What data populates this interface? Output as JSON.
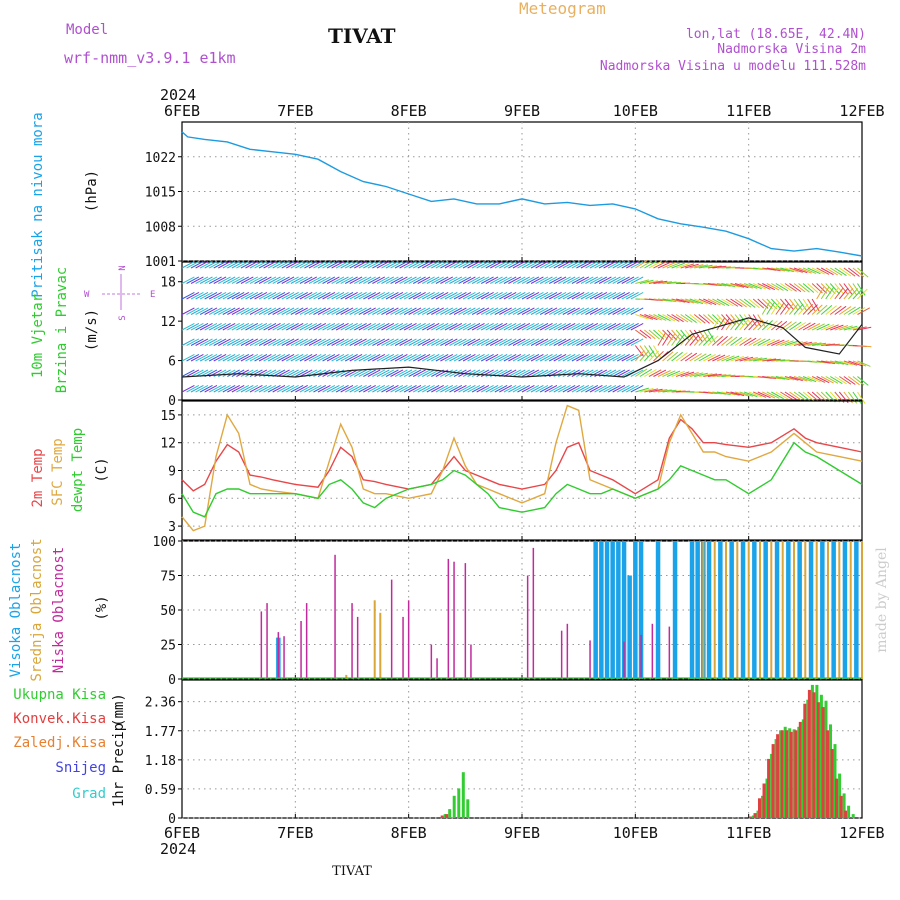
{
  "header": {
    "model_label": "Model",
    "model_name": "wrf-nmm_v3.9.1 e1km",
    "station": "TIVAT",
    "chart_kind": "Meteogram",
    "lonlat": "lon,lat (18.65E, 42.4N)",
    "elevation": "Nadmorska Visina 2m",
    "model_elevation": "Nadmorska Visina u modelu 111.528m",
    "footer_station": "TIVAT",
    "credit": "made by Angel"
  },
  "axis": {
    "year_label": "2024",
    "day_labels": [
      "6FEB",
      "7FEB",
      "8FEB",
      "9FEB",
      "10FEB",
      "11FEB",
      "12FEB"
    ]
  },
  "panels": {
    "pressure": {
      "ylabel": "Pritisak na nivou mora",
      "unit": "(hPa)"
    },
    "wind": {
      "ylabel1": "10m Vjetar",
      "ylabel2": "Brzina i Pravac",
      "unit": "(m/s)",
      "compass": "N",
      "compass_w": "W",
      "compass_e": "E",
      "compass_s": "S"
    },
    "temp": {
      "ylabel1": "2m Temp",
      "ylabel2": "SFC Temp",
      "ylabel3": "dewpt Temp",
      "unit": "(C)"
    },
    "cloud": {
      "ylabel1": "Visoka Oblacnost",
      "ylabel2": "Srednja Oblacnost",
      "ylabel3": "Niska Oblacnost",
      "unit": "(%)"
    },
    "precip": {
      "legend": [
        "Ukupna Kisa",
        "Konvek.Kisa",
        "Zaledj.Kisa",
        "Snijeg",
        "Grad"
      ],
      "ylabel": "1hr Precip",
      "unit": "(mm)"
    }
  },
  "colors": {
    "pressure": "#1e9be0",
    "t2m": "#e8474a",
    "sfc": "#e0a840",
    "dewpt": "#2fcc2f",
    "high_cloud": "#1aa3e8",
    "mid_cloud": "#d9a63a",
    "low_cloud": "#c02a9c",
    "total_rain": "#33cc33",
    "conv_rain": "#e04040",
    "frz_rain": "#e88030",
    "snow": "#4444dd",
    "hail": "#33cccc",
    "title_purple": "#b050d0",
    "meteogram_orange": "#e8b060"
  },
  "chart_data": [
    {
      "type": "line",
      "name": "pressure",
      "ylim": [
        1001,
        1029
      ],
      "yticks": [
        "1001",
        "1008",
        "1015",
        "1022"
      ],
      "x_days": [
        0,
        0.05,
        0.2,
        0.4,
        0.6,
        0.8,
        1.0,
        1.2,
        1.4,
        1.6,
        1.8,
        2.0,
        2.2,
        2.4,
        2.6,
        2.8,
        3.0,
        3.2,
        3.4,
        3.6,
        3.8,
        4.0,
        4.2,
        4.4,
        4.6,
        4.8,
        5.0,
        5.2,
        5.4,
        5.6,
        5.8,
        6.0
      ],
      "values": [
        1027.0,
        1026.0,
        1025.5,
        1025.0,
        1023.5,
        1023.0,
        1022.5,
        1021.5,
        1019.0,
        1017.0,
        1016.0,
        1014.5,
        1013.0,
        1013.5,
        1012.5,
        1012.5,
        1013.5,
        1012.5,
        1012.8,
        1012.2,
        1012.5,
        1011.5,
        1009.5,
        1008.5,
        1007.8,
        1007.0,
        1005.5,
        1003.5,
        1003.0,
        1003.5,
        1002.8,
        1002.0
      ]
    },
    {
      "type": "line",
      "name": "wind",
      "ylim": [
        0,
        21
      ],
      "yticks": [
        "0",
        "6",
        "12",
        "18"
      ],
      "x_days": [
        0,
        0.5,
        1.0,
        1.5,
        2.0,
        2.5,
        3.0,
        3.5,
        3.9,
        4.2,
        4.5,
        4.8,
        5.0,
        5.3,
        5.5,
        5.8,
        6.0
      ],
      "values": [
        3.5,
        4.0,
        3.5,
        4.5,
        5.0,
        4.0,
        3.5,
        4.0,
        3.5,
        6.0,
        10.0,
        11.5,
        12.5,
        11.0,
        8.0,
        7.0,
        11.5
      ]
    },
    {
      "type": "line",
      "name": "temperature",
      "ylim": [
        1.5,
        16.5
      ],
      "yticks": [
        "3",
        "6",
        "9",
        "12",
        "15"
      ],
      "x_days": [
        0,
        0.1,
        0.2,
        0.3,
        0.4,
        0.5,
        0.6,
        0.7,
        0.8,
        1.0,
        1.2,
        1.3,
        1.4,
        1.5,
        1.6,
        1.7,
        1.8,
        2.0,
        2.2,
        2.3,
        2.4,
        2.5,
        2.6,
        2.7,
        2.8,
        3.0,
        3.2,
        3.3,
        3.4,
        3.5,
        3.6,
        3.7,
        3.8,
        4.0,
        4.2,
        4.3,
        4.4,
        4.5,
        4.6,
        4.7,
        4.8,
        5.0,
        5.2,
        5.4,
        5.5,
        5.6,
        5.8,
        6.0
      ],
      "series": [
        {
          "name": "2m Temp",
          "values": [
            8.0,
            6.8,
            7.5,
            10.0,
            11.8,
            11.0,
            8.5,
            8.3,
            8.0,
            7.5,
            7.2,
            9.0,
            11.5,
            10.5,
            8.0,
            7.8,
            7.5,
            7.0,
            7.5,
            9.0,
            10.5,
            9.0,
            8.5,
            8.0,
            7.5,
            7.0,
            7.5,
            9.0,
            11.5,
            12.0,
            9.0,
            8.5,
            8.0,
            6.5,
            8.0,
            12.5,
            14.5,
            13.5,
            12.0,
            12.0,
            11.8,
            11.5,
            12.0,
            13.5,
            12.5,
            12.0,
            11.5,
            11.0
          ]
        },
        {
          "name": "SFC Temp",
          "values": [
            4.0,
            2.5,
            3.0,
            10.5,
            15.0,
            13.0,
            7.5,
            7.0,
            6.8,
            6.5,
            6.0,
            10.0,
            14.0,
            11.5,
            7.0,
            6.5,
            6.5,
            6.0,
            6.5,
            9.0,
            12.5,
            9.5,
            7.5,
            7.0,
            6.5,
            5.5,
            6.5,
            12.0,
            16.0,
            15.5,
            8.0,
            7.5,
            7.0,
            6.0,
            7.0,
            12.0,
            15.0,
            13.0,
            11.0,
            11.0,
            10.5,
            10.0,
            11.0,
            13.0,
            12.0,
            11.0,
            10.5,
            10.0
          ]
        },
        {
          "name": "dewpt Temp",
          "values": [
            6.5,
            4.5,
            4.0,
            6.5,
            7.0,
            7.0,
            6.5,
            6.5,
            6.5,
            6.5,
            6.0,
            7.5,
            8.0,
            7.0,
            5.5,
            5.0,
            6.0,
            7.0,
            7.5,
            8.0,
            9.0,
            8.5,
            7.5,
            6.5,
            5.0,
            4.5,
            5.0,
            6.5,
            7.5,
            7.0,
            6.5,
            6.5,
            7.0,
            6.0,
            7.0,
            8.0,
            9.5,
            9.0,
            8.5,
            8.0,
            8.0,
            6.5,
            8.0,
            12.0,
            11.0,
            10.5,
            9.0,
            7.5
          ]
        }
      ]
    },
    {
      "type": "bar",
      "name": "cloud",
      "ylim": [
        0,
        100
      ],
      "yticks": [
        "0",
        "25",
        "50",
        "75",
        "100"
      ],
      "series": [
        {
          "name": "Visoka Oblacnost",
          "x_days": [
            0.85,
            3.65,
            3.7,
            3.75,
            3.8,
            3.85,
            3.9,
            3.95,
            4.0,
            4.05,
            4.2,
            4.35,
            4.5,
            4.55,
            4.6,
            4.65,
            4.75,
            4.85,
            4.95,
            5.05,
            5.15,
            5.25,
            5.35,
            5.45,
            5.55,
            5.65,
            5.75,
            5.85,
            5.95
          ],
          "values": [
            30,
            100,
            100,
            100,
            100,
            100,
            100,
            75,
            100,
            100,
            100,
            100,
            100,
            100,
            100,
            100,
            100,
            100,
            100,
            100,
            100,
            100,
            100,
            100,
            100,
            100,
            100,
            100,
            100
          ]
        },
        {
          "name": "Srednja Oblacnost",
          "x_days": [
            1.45,
            1.7,
            1.75,
            4.6,
            4.7,
            4.8,
            4.9,
            5.0,
            5.1,
            5.2,
            5.3,
            5.4,
            5.5,
            5.6,
            5.7,
            5.8,
            5.9,
            6.0
          ],
          "values": [
            3,
            57,
            48,
            100,
            100,
            100,
            100,
            100,
            100,
            100,
            100,
            100,
            100,
            100,
            100,
            100,
            100,
            100
          ]
        },
        {
          "name": "Niska Oblacnost",
          "x_days": [
            0.7,
            0.75,
            0.85,
            0.9,
            1.05,
            1.1,
            1.35,
            1.5,
            1.55,
            1.85,
            1.95,
            2.0,
            2.2,
            2.25,
            2.35,
            2.4,
            2.5,
            2.55,
            3.05,
            3.1,
            3.35,
            3.4,
            3.6,
            3.9,
            4.05,
            4.15,
            4.3
          ],
          "values": [
            49,
            55,
            34,
            31,
            42,
            55,
            90,
            55,
            45,
            72,
            45,
            57,
            25,
            15,
            87,
            85,
            84,
            25,
            75,
            95,
            35,
            40,
            28,
            27,
            32,
            40,
            38
          ]
        }
      ]
    },
    {
      "type": "bar",
      "name": "precip",
      "ylim": [
        0,
        2.8
      ],
      "yticks": [
        "0",
        "0.59",
        "1.18",
        "1.77",
        "2.36"
      ],
      "series": [
        {
          "name": "Ukupna Kisa",
          "x_days": [
            2.3,
            2.34,
            2.38,
            2.42,
            2.46,
            2.5,
            4.85,
            5.02,
            5.06,
            5.1,
            5.14,
            5.18,
            5.22,
            5.26,
            5.3,
            5.34,
            5.38,
            5.42,
            5.46,
            5.5,
            5.54,
            5.58,
            5.62,
            5.66,
            5.7,
            5.74,
            5.78,
            5.82,
            5.86,
            5.9
          ],
          "values": [
            0.08,
            0.18,
            0.45,
            0.6,
            0.93,
            0.38,
            0.02,
            0.05,
            0.15,
            0.45,
            0.8,
            1.3,
            1.6,
            1.78,
            1.85,
            1.82,
            1.8,
            1.85,
            2.0,
            2.4,
            2.7,
            2.7,
            2.5,
            2.38,
            1.9,
            1.5,
            0.9,
            0.5,
            0.25,
            0.08
          ]
        },
        {
          "name": "Konvek.Kisa",
          "x_days": [
            2.3,
            2.34,
            5.02,
            5.06,
            5.1,
            5.14,
            5.18,
            5.22,
            5.26,
            5.3,
            5.34,
            5.38,
            5.42,
            5.46,
            5.5,
            5.54,
            5.58,
            5.62,
            5.66,
            5.7,
            5.74,
            5.78,
            5.82,
            5.86
          ],
          "values": [
            0.05,
            0.08,
            0.03,
            0.1,
            0.4,
            0.7,
            1.2,
            1.5,
            1.7,
            1.78,
            1.78,
            1.75,
            1.78,
            1.95,
            2.32,
            2.6,
            2.55,
            2.35,
            2.25,
            1.78,
            1.4,
            0.8,
            0.45,
            0.15
          ]
        }
      ]
    }
  ]
}
